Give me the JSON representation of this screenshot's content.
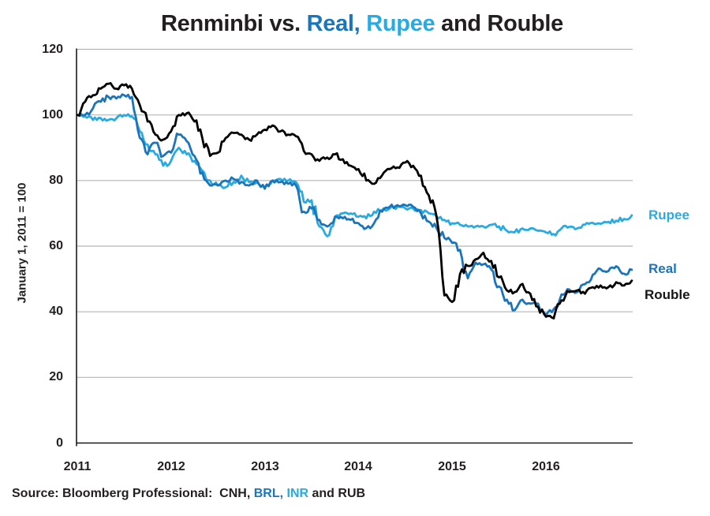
{
  "title": {
    "parts": [
      {
        "text": "Renminbi vs. ",
        "color": "#231f20"
      },
      {
        "text": "Real,",
        "color": "#1b75bb"
      },
      {
        "text": " ",
        "color": "#231f20"
      },
      {
        "text": "Rupee",
        "color": "#29abe2"
      },
      {
        "text": " and Rouble",
        "color": "#231f20"
      }
    ]
  },
  "y_axis": {
    "label": "January 1, 2011 = 100",
    "ticks": [
      120,
      100,
      80,
      60,
      40,
      20,
      0
    ]
  },
  "x_axis": {
    "ticks": [
      "2011",
      "2012",
      "2013",
      "2014",
      "2015",
      "2016"
    ]
  },
  "series_labels": {
    "rupee": "Rupee",
    "real": "Real",
    "rouble": "Rouble"
  },
  "source": {
    "parts": [
      {
        "text": "Source: Bloomberg Professional:  CNH, ",
        "color": "#231f20"
      },
      {
        "text": "BRL,",
        "color": "#1b75bb"
      },
      {
        "text": " ",
        "color": "#231f20"
      },
      {
        "text": "INR",
        "color": "#29abe2"
      },
      {
        "text": " and RUB",
        "color": "#231f20"
      }
    ]
  },
  "colors": {
    "rouble_line": "#000000",
    "real_line": "#1b75bb",
    "rupee_line": "#29abe2",
    "gridline": "#b5b5b5",
    "axis": "#1a1a1a",
    "text": "#231f20",
    "background": "#ffffff"
  },
  "chart_data": {
    "type": "line",
    "title": "Renminbi vs. Real, Rupee and Rouble",
    "ylabel": "January 1, 2011 = 100",
    "ylim": [
      0,
      120
    ],
    "y_ticks": [
      0,
      20,
      40,
      60,
      80,
      100,
      120
    ],
    "x_tick_labels": [
      "2011",
      "2012",
      "2013",
      "2014",
      "2015",
      "2016"
    ],
    "x_start_year": 2011,
    "x_resolution": "monthly",
    "grid": "horizontal",
    "legend_position": "right-of-line-ends",
    "series": [
      {
        "name": "Rupee",
        "code": "INR",
        "color": "#29abe2",
        "values": [
          100,
          99.5,
          98.5,
          99,
          98.5,
          99,
          100,
          99.5,
          95,
          91,
          88,
          84.5,
          86,
          90,
          88,
          86,
          83,
          80,
          78.5,
          78,
          79.5,
          81.5,
          79.5,
          79.5,
          78,
          80,
          80.5,
          80,
          79.5,
          73.5,
          74,
          66,
          63,
          69,
          70,
          70,
          69,
          68.5,
          70.5,
          71,
          71.5,
          72,
          71.5,
          71.5,
          71,
          70,
          69,
          68,
          67,
          66.5,
          66,
          66,
          66,
          66.5,
          66,
          64.7,
          64.2,
          65.4,
          65.4,
          64.7,
          64.2,
          63.7,
          65.4,
          65.9,
          65.4,
          66.6,
          67.1,
          66.8,
          67.4,
          67.8,
          68.3,
          69.4
        ]
      },
      {
        "name": "Real",
        "code": "BRL",
        "color": "#1b75bb",
        "values": [
          100,
          100,
          102,
          104,
          105.5,
          105,
          106,
          105.5,
          93,
          88,
          91.5,
          87.5,
          88.5,
          94,
          92,
          87.5,
          82.5,
          78.5,
          78.5,
          80,
          80.5,
          79.5,
          78.5,
          80,
          77.5,
          80,
          79.5,
          79,
          78.5,
          70.5,
          71.5,
          68,
          66,
          69,
          68.5,
          68,
          67,
          65.5,
          67,
          70.5,
          72,
          72.5,
          72.5,
          72,
          70,
          67.5,
          65.5,
          62.5,
          61,
          58.9,
          50.2,
          55,
          54.5,
          52.9,
          47.7,
          43.7,
          40.5,
          43.7,
          42.5,
          42.5,
          38.9,
          40.8,
          45.3,
          46.8,
          46,
          48.4,
          51.3,
          53,
          52.4,
          53.9,
          51.6,
          52.8
        ]
      },
      {
        "name": "Rouble",
        "code": "RUB",
        "color": "#000000",
        "values": [
          100,
          104,
          106,
          108,
          109.5,
          108,
          109,
          108,
          103,
          98,
          94,
          92.5,
          95,
          100,
          100.5,
          98,
          93,
          87.5,
          88.5,
          93,
          94.5,
          94,
          92.5,
          94,
          95.5,
          96.8,
          95,
          94,
          93.5,
          89,
          88,
          86,
          87,
          88,
          86.5,
          84.5,
          83.5,
          80,
          79,
          81.5,
          83.5,
          84,
          85.5,
          84.5,
          81.5,
          75.5,
          69,
          45,
          43,
          51.5,
          54,
          56,
          58,
          55.5,
          50.5,
          46.5,
          46,
          48.5,
          45.5,
          41.5,
          38.5,
          38,
          43.5,
          46,
          46.5,
          45.5,
          47.5,
          48,
          47.5,
          49,
          48,
          49.5
        ]
      }
    ]
  }
}
